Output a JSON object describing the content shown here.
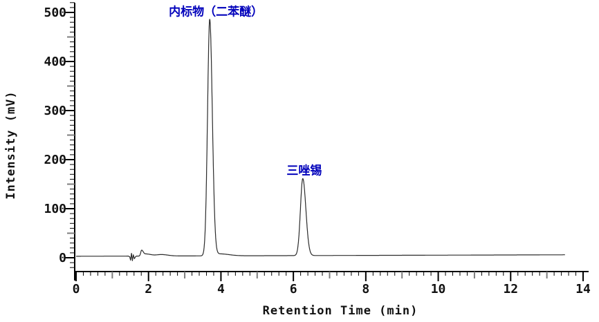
{
  "window": {
    "background": "#ffffff"
  },
  "chart_data": {
    "type": "line",
    "title": "",
    "xlabel": "Retention Time (min)",
    "ylabel": "Intensity (mV)",
    "xlim": [
      0,
      14.2
    ],
    "ylim": [
      -28,
      520
    ],
    "grid": false,
    "legend": null,
    "x_major_ticks": [
      0,
      2,
      4,
      6,
      8,
      10,
      12,
      14
    ],
    "x_medium_tick_step": 1,
    "x_minor_tick_step": 0.2,
    "y_major_ticks": [
      0,
      100,
      200,
      300,
      400,
      500
    ],
    "y_medium_tick_step": 50,
    "y_minor_tick_step": 10,
    "trace": {
      "t_start_min": 0,
      "t_end_min": 13.5,
      "baseline_start_mV": 3,
      "baseline_end_mV": 6,
      "noise_points": [
        [
          1.44,
          3.5
        ],
        [
          1.48,
          2
        ],
        [
          1.505,
          -5
        ],
        [
          1.53,
          9
        ],
        [
          1.555,
          -6
        ],
        [
          1.58,
          6
        ],
        [
          1.61,
          -2
        ],
        [
          1.64,
          2
        ],
        [
          1.67,
          3.5
        ]
      ],
      "peaks": [
        {
          "name": "baseline-disturbance",
          "label": "",
          "rt_min": 1.81,
          "height_mV": 12,
          "sigma_l_min": 0.025,
          "sigma_r_min": 0.05
        },
        {
          "name": "baseline-hump-1",
          "label": "",
          "rt_min": 1.95,
          "height_mV": 4,
          "sigma_l_min": 0.05,
          "sigma_r_min": 0.12
        },
        {
          "name": "baseline-hump-2",
          "label": "",
          "rt_min": 2.35,
          "height_mV": 3,
          "sigma_l_min": 0.15,
          "sigma_r_min": 0.18
        },
        {
          "name": "internal-standard-peak",
          "label": "内标物（二苯醚）",
          "rt_min": 3.69,
          "height_mV": 482,
          "sigma_l_min": 0.06,
          "sigma_r_min": 0.072
        },
        {
          "name": "post-peak-tail",
          "label": "",
          "rt_min": 3.97,
          "height_mV": 4,
          "sigma_l_min": 0.12,
          "sigma_r_min": 0.25
        },
        {
          "name": "azocyclotin-peak",
          "label": "三唑锡",
          "rt_min": 6.26,
          "height_mV": 157,
          "sigma_l_min": 0.065,
          "sigma_r_min": 0.085
        }
      ]
    },
    "annotations": [
      {
        "text": "内标物（二苯醚）",
        "t_min": 3.86,
        "mV": 494
      },
      {
        "text": "三唑锡",
        "t_min": 6.3,
        "mV": 170
      }
    ],
    "colors": {
      "trace": "#2b2b2b",
      "axis": "#000000",
      "medium_tick": "#7d7d7d",
      "tick_label": "#111111",
      "annotation": "#0000bb",
      "background": "#ffffff"
    }
  }
}
